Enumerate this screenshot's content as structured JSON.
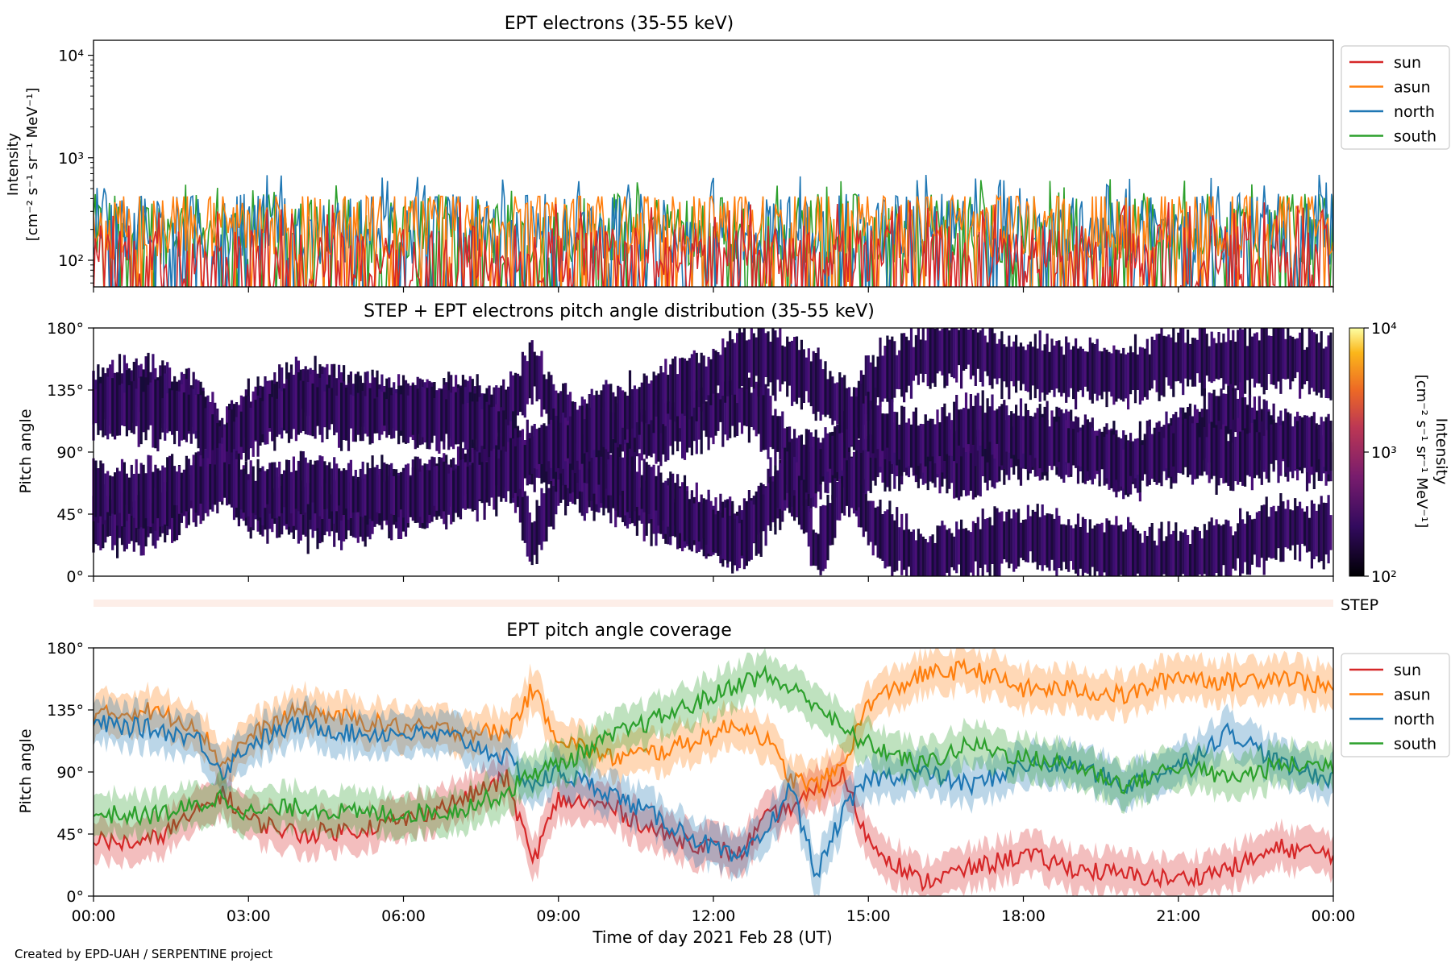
{
  "footer": "Created by EPD-UAH / SERPENTINE project",
  "x_axis": {
    "label": "Time of day 2021 Feb 28 (UT)",
    "ticks": [
      "00:00",
      "03:00",
      "06:00",
      "09:00",
      "12:00",
      "15:00",
      "18:00",
      "21:00",
      "00:00"
    ]
  },
  "chart_data": [
    {
      "type": "line",
      "title": "EPT electrons (35-55 keV)",
      "ylabel": "Intensity",
      "ylabel_unit": "[cm⁻² s⁻¹ sr⁻¹ MeV⁻¹]",
      "yscale": "log",
      "ylim": [
        55,
        14000
      ],
      "y_ticks": [
        "10²",
        "10³",
        "10⁴"
      ],
      "legend_position": "outside-right",
      "series": [
        {
          "name": "sun",
          "color": "#d62728",
          "typical": 100,
          "low": 55,
          "high": 370
        },
        {
          "name": "asun",
          "color": "#ff7f0e",
          "typical": 230,
          "low": 120,
          "high": 420
        },
        {
          "name": "north",
          "color": "#1f77b4",
          "typical": 200,
          "low": 60,
          "high": 700
        },
        {
          "name": "south",
          "color": "#2ca02c",
          "typical": 200,
          "low": 60,
          "high": 620
        }
      ]
    },
    {
      "type": "heatmap",
      "title": "STEP + EPT electrons pitch angle distribution (35-55 keV)",
      "ylabel": "Pitch angle",
      "ylim": [
        0,
        180
      ],
      "y_ticks": [
        "0°",
        "45°",
        "90°",
        "135°",
        "180°"
      ],
      "colorbar": {
        "label": "Intensity",
        "unit": "[cm⁻² s⁻¹ sr⁻¹ MeV⁻¹]",
        "scale": "log",
        "range": [
          100,
          10000
        ],
        "ticks": [
          "10²",
          "10³",
          "10⁴"
        ],
        "colormap": "inferno"
      },
      "note": "dense dark-purple stripes following the four EPT pitch angle bands"
    },
    {
      "type": "strip",
      "label": "STEP",
      "color": "#fdeee8"
    },
    {
      "type": "line",
      "title": "EPT pitch angle coverage",
      "ylabel": "Pitch angle",
      "ylim": [
        0,
        180
      ],
      "y_ticks": [
        "0°",
        "45°",
        "90°",
        "135°",
        "180°"
      ],
      "legend_position": "outside-right",
      "x_hours": [
        0,
        1,
        2,
        2.5,
        3,
        4,
        5,
        6,
        7,
        8,
        8.5,
        9,
        10,
        11,
        12,
        12.5,
        13,
        13.5,
        14,
        14.5,
        15,
        16,
        17,
        18,
        19,
        20,
        21,
        22,
        23,
        24
      ],
      "series": [
        {
          "name": "sun",
          "color": "#d62728",
          "values": [
            40,
            38,
            60,
            75,
            55,
            45,
            48,
            55,
            68,
            85,
            25,
            70,
            65,
            45,
            35,
            30,
            55,
            65,
            75,
            88,
            40,
            10,
            20,
            30,
            20,
            15,
            12,
            20,
            35,
            30
          ]
        },
        {
          "name": "asun",
          "color": "#ff7f0e",
          "values": [
            130,
            135,
            125,
            95,
            115,
            135,
            128,
            122,
            120,
            118,
            150,
            115,
            100,
            105,
            118,
            125,
            115,
            85,
            80,
            95,
            140,
            160,
            165,
            150,
            150,
            145,
            160,
            155,
            160,
            150
          ]
        },
        {
          "name": "north",
          "color": "#1f77b4",
          "values": [
            125,
            122,
            115,
            90,
            110,
            125,
            118,
            118,
            115,
            100,
            80,
            90,
            75,
            55,
            35,
            25,
            45,
            80,
            15,
            60,
            85,
            90,
            80,
            95,
            95,
            80,
            95,
            120,
            95,
            85
          ]
        },
        {
          "name": "south",
          "color": "#2ca02c",
          "values": [
            60,
            58,
            65,
            72,
            60,
            65,
            60,
            60,
            62,
            75,
            90,
            95,
            115,
            130,
            145,
            155,
            160,
            150,
            140,
            120,
            110,
            95,
            110,
            100,
            95,
            80,
            95,
            85,
            95,
            95
          ]
        }
      ]
    }
  ]
}
